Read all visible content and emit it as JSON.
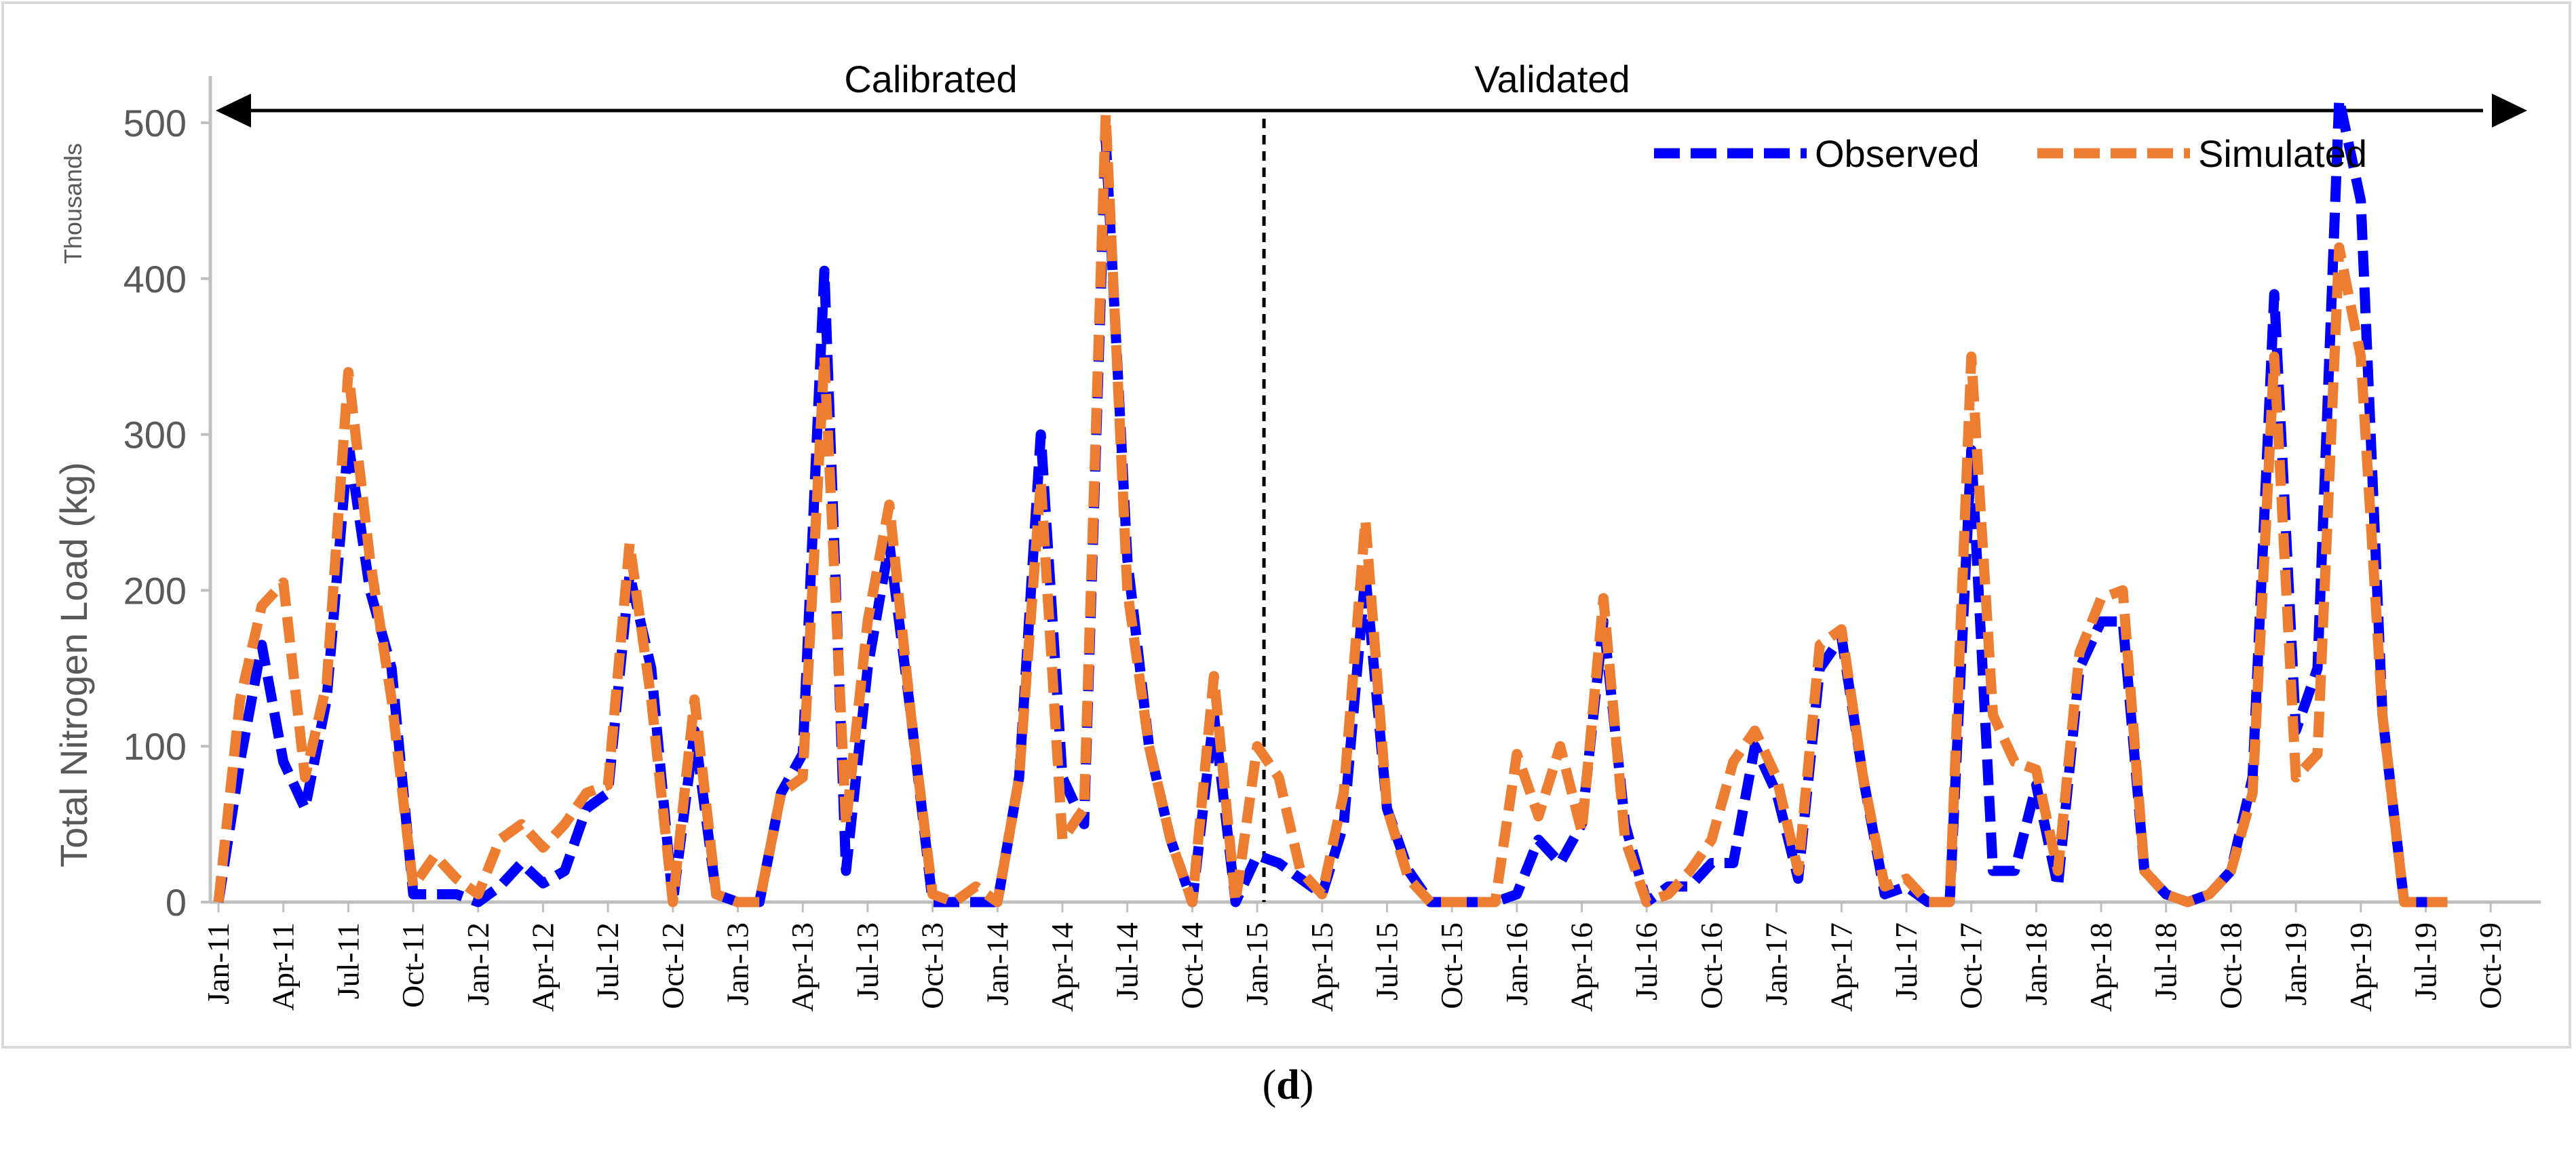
{
  "chart_data": {
    "type": "line",
    "ylabel": "Total Nitrogen Load (kg)",
    "yunit": "Thousands",
    "ylim": [
      0,
      530
    ],
    "yticks": [
      0,
      100,
      200,
      300,
      400,
      500
    ],
    "grid": false,
    "legend_position": "top-right",
    "period_labels": [
      "Calibrated",
      "Validated"
    ],
    "split_after": "Dec-14",
    "x_tick_labels": [
      "Jan-11",
      "Apr-11",
      "Jul-11",
      "Oct-11",
      "Jan-12",
      "Apr-12",
      "Jul-12",
      "Oct-12",
      "Jan-13",
      "Apr-13",
      "Jul-13",
      "Oct-13",
      "Jan-14",
      "Apr-14",
      "Jul-14",
      "Oct-14",
      "Jan-15",
      "Apr-15",
      "Jul-15",
      "Oct-15",
      "Jan-16",
      "Apr-16",
      "Jul-16",
      "Oct-16",
      "Jan-17",
      "Apr-17",
      "Jul-17",
      "Oct-17",
      "Jan-18",
      "Apr-18",
      "Jul-18",
      "Oct-18",
      "Jan-19",
      "Apr-19",
      "Jul-19",
      "Oct-19"
    ],
    "months_count": 108,
    "series": [
      {
        "name": "Observed",
        "color": "#0000ff",
        "values": [
          0,
          90,
          165,
          90,
          60,
          130,
          295,
          200,
          150,
          5,
          5,
          5,
          0,
          10,
          25,
          12,
          20,
          60,
          70,
          210,
          150,
          0,
          110,
          5,
          0,
          0,
          70,
          95,
          405,
          20,
          150,
          230,
          120,
          0,
          0,
          0,
          0,
          80,
          300,
          80,
          50,
          490,
          220,
          100,
          40,
          0,
          120,
          0,
          30,
          25,
          15,
          5,
          50,
          210,
          60,
          20,
          0,
          0,
          0,
          0,
          5,
          40,
          25,
          50,
          180,
          50,
          0,
          10,
          10,
          25,
          25,
          100,
          70,
          15,
          150,
          170,
          80,
          5,
          10,
          0,
          0,
          290,
          20,
          20,
          75,
          10,
          150,
          180,
          180,
          20,
          5,
          0,
          5,
          20,
          80,
          390,
          110,
          150,
          515,
          450,
          120,
          0,
          0,
          0
        ]
      },
      {
        "name": "Simulated",
        "color": "#ed7d31",
        "values": [
          0,
          130,
          190,
          205,
          80,
          140,
          340,
          220,
          130,
          10,
          30,
          15,
          5,
          40,
          50,
          35,
          50,
          70,
          75,
          230,
          130,
          0,
          130,
          5,
          0,
          0,
          70,
          80,
          350,
          50,
          180,
          255,
          120,
          5,
          0,
          10,
          0,
          80,
          270,
          40,
          60,
          505,
          200,
          100,
          40,
          0,
          145,
          0,
          100,
          80,
          20,
          5,
          70,
          245,
          60,
          15,
          0,
          0,
          0,
          0,
          95,
          55,
          100,
          45,
          195,
          40,
          0,
          5,
          20,
          40,
          90,
          110,
          80,
          20,
          165,
          175,
          80,
          10,
          15,
          0,
          0,
          350,
          120,
          90,
          85,
          20,
          160,
          195,
          200,
          20,
          5,
          0,
          5,
          20,
          70,
          350,
          80,
          95,
          420,
          350,
          120,
          0,
          0,
          0
        ]
      }
    ]
  }
}
